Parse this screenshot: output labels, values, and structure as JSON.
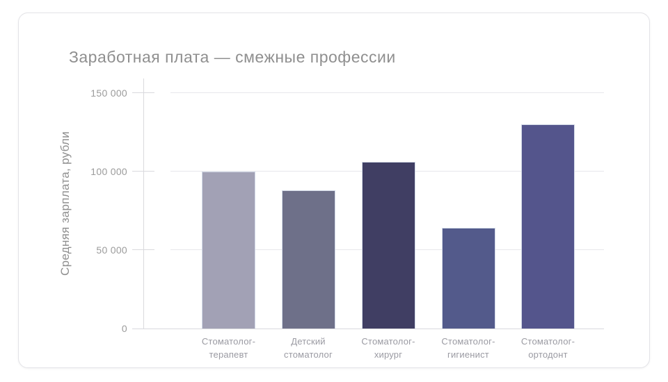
{
  "page": {
    "title": "Заработная плата — смежные профессии"
  },
  "chart_data": {
    "type": "bar",
    "title": "Заработная плата — смежные профессии",
    "xlabel": "",
    "ylabel": "Средняя зарплата, рубли",
    "categories": [
      "Стоматолог-терапевт",
      "Детский стоматолог",
      "Стоматолог-хирург",
      "Стоматолог-гигиенист",
      "Стоматолог-ортодонт"
    ],
    "category_label_lines": [
      [
        "Стоматолог-",
        "терапевт"
      ],
      [
        "Детский",
        "стоматолог"
      ],
      [
        "Стоматолог-",
        "хирург"
      ],
      [
        "Стоматолог-",
        "гигиенист"
      ],
      [
        "Стоматолог-",
        "ортодонт"
      ]
    ],
    "values": [
      100000,
      88000,
      106000,
      64000,
      130000
    ],
    "bar_colors": [
      "#a2a1b5",
      "#6e7089",
      "#403e63",
      "#535a8b",
      "#54558c"
    ],
    "ylim": [
      0,
      150000
    ],
    "yticks": [
      0,
      50000,
      100000,
      150000
    ],
    "ytick_labels": [
      "0",
      "50 000",
      "100 000",
      "150 000"
    ],
    "grid": true,
    "legend": false
  },
  "style": {
    "background": "#ffffff",
    "card_border": "#e3e3e7",
    "title_color": "#8f8f8f",
    "axis_label_color": "#8f8f8f",
    "tick_label_color": "#9b9b9b",
    "grid_color": "#e7e7eb",
    "axis_line_color": "#d9d9dd",
    "bar_edge_color": "#d3dae8"
  }
}
